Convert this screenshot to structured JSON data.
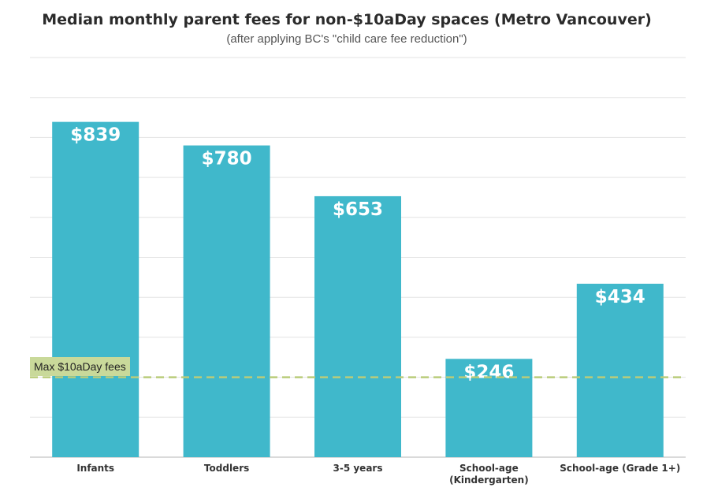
{
  "chart_data": {
    "type": "bar",
    "title": "Median monthly parent fees for non-$10aDay spaces (Metro Vancouver)",
    "subtitle": "(after applying BC's \"child care fee reduction\")",
    "categories": [
      "Infants",
      "Toddlers",
      "3-5 years",
      "School-age (Kindergarten)",
      "School-age (Grade 1+)"
    ],
    "category_lines": [
      [
        "Infants"
      ],
      [
        "Toddlers"
      ],
      [
        "3-5 years"
      ],
      [
        "School-age",
        "(Kindergarten)"
      ],
      [
        "School-age (Grade 1+)"
      ]
    ],
    "values": [
      839,
      780,
      653,
      246,
      434
    ],
    "value_labels": [
      "$839",
      "$780",
      "$653",
      "$246",
      "$434"
    ],
    "ylim": [
      0,
      1000
    ],
    "grid": true,
    "bar_color": "#40b8cb",
    "reference_line": {
      "label": "Max $10aDay fees",
      "value": 200,
      "color": "#b9cc7a"
    }
  }
}
